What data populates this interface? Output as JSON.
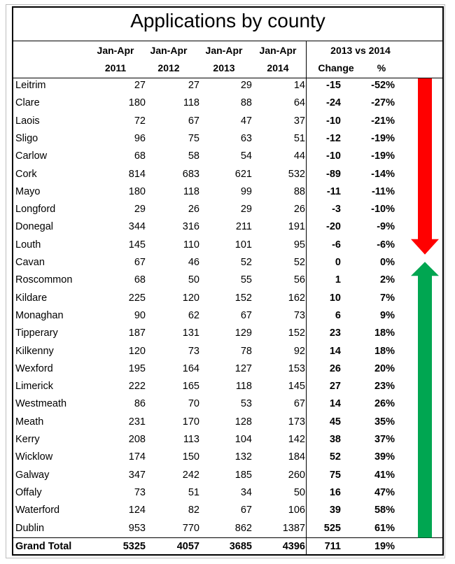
{
  "chart_data": {
    "type": "table",
    "title": "Applications by county",
    "header_top": [
      "Jan-Apr",
      "Jan-Apr",
      "Jan-Apr",
      "Jan-Apr"
    ],
    "header_years": [
      "2011",
      "2012",
      "2013",
      "2014"
    ],
    "comparison_header": "2013 vs 2014",
    "change_header": "Change",
    "pct_header": "%",
    "rows": [
      {
        "county": "Leitrim",
        "y2011": "27",
        "y2012": "27",
        "y2013": "29",
        "y2014": "14",
        "change": "-15",
        "pct": "-52%"
      },
      {
        "county": "Clare",
        "y2011": "180",
        "y2012": "118",
        "y2013": "88",
        "y2014": "64",
        "change": "-24",
        "pct": "-27%"
      },
      {
        "county": "Laois",
        "y2011": "72",
        "y2012": "67",
        "y2013": "47",
        "y2014": "37",
        "change": "-10",
        "pct": "-21%"
      },
      {
        "county": "Sligo",
        "y2011": "96",
        "y2012": "75",
        "y2013": "63",
        "y2014": "51",
        "change": "-12",
        "pct": "-19%"
      },
      {
        "county": "Carlow",
        "y2011": "68",
        "y2012": "58",
        "y2013": "54",
        "y2014": "44",
        "change": "-10",
        "pct": "-19%"
      },
      {
        "county": "Cork",
        "y2011": "814",
        "y2012": "683",
        "y2013": "621",
        "y2014": "532",
        "change": "-89",
        "pct": "-14%"
      },
      {
        "county": "Mayo",
        "y2011": "180",
        "y2012": "118",
        "y2013": "99",
        "y2014": "88",
        "change": "-11",
        "pct": "-11%"
      },
      {
        "county": "Longford",
        "y2011": "29",
        "y2012": "26",
        "y2013": "29",
        "y2014": "26",
        "change": "-3",
        "pct": "-10%"
      },
      {
        "county": "Donegal",
        "y2011": "344",
        "y2012": "316",
        "y2013": "211",
        "y2014": "191",
        "change": "-20",
        "pct": "-9%"
      },
      {
        "county": "Louth",
        "y2011": "145",
        "y2012": "110",
        "y2013": "101",
        "y2014": "95",
        "change": "-6",
        "pct": "-6%"
      },
      {
        "county": "Cavan",
        "y2011": "67",
        "y2012": "46",
        "y2013": "52",
        "y2014": "52",
        "change": "0",
        "pct": "0%"
      },
      {
        "county": "Roscommon",
        "y2011": "68",
        "y2012": "50",
        "y2013": "55",
        "y2014": "56",
        "change": "1",
        "pct": "2%"
      },
      {
        "county": "Kildare",
        "y2011": "225",
        "y2012": "120",
        "y2013": "152",
        "y2014": "162",
        "change": "10",
        "pct": "7%"
      },
      {
        "county": "Monaghan",
        "y2011": "90",
        "y2012": "62",
        "y2013": "67",
        "y2014": "73",
        "change": "6",
        "pct": "9%"
      },
      {
        "county": "Tipperary",
        "y2011": "187",
        "y2012": "131",
        "y2013": "129",
        "y2014": "152",
        "change": "23",
        "pct": "18%"
      },
      {
        "county": "Kilkenny",
        "y2011": "120",
        "y2012": "73",
        "y2013": "78",
        "y2014": "92",
        "change": "14",
        "pct": "18%"
      },
      {
        "county": "Wexford",
        "y2011": "195",
        "y2012": "164",
        "y2013": "127",
        "y2014": "153",
        "change": "26",
        "pct": "20%"
      },
      {
        "county": "Limerick",
        "y2011": "222",
        "y2012": "165",
        "y2013": "118",
        "y2014": "145",
        "change": "27",
        "pct": "23%"
      },
      {
        "county": "Westmeath",
        "y2011": "86",
        "y2012": "70",
        "y2013": "53",
        "y2014": "67",
        "change": "14",
        "pct": "26%"
      },
      {
        "county": "Meath",
        "y2011": "231",
        "y2012": "170",
        "y2013": "128",
        "y2014": "173",
        "change": "45",
        "pct": "35%"
      },
      {
        "county": "Kerry",
        "y2011": "208",
        "y2012": "113",
        "y2013": "104",
        "y2014": "142",
        "change": "38",
        "pct": "37%"
      },
      {
        "county": "Wicklow",
        "y2011": "174",
        "y2012": "150",
        "y2013": "132",
        "y2014": "184",
        "change": "52",
        "pct": "39%"
      },
      {
        "county": "Galway",
        "y2011": "347",
        "y2012": "242",
        "y2013": "185",
        "y2014": "260",
        "change": "75",
        "pct": "41%"
      },
      {
        "county": "Offaly",
        "y2011": "73",
        "y2012": "51",
        "y2013": "34",
        "y2014": "50",
        "change": "16",
        "pct": "47%"
      },
      {
        "county": "Waterford",
        "y2011": "124",
        "y2012": "82",
        "y2013": "67",
        "y2014": "106",
        "change": "39",
        "pct": "58%"
      },
      {
        "county": "Dublin",
        "y2011": "953",
        "y2012": "770",
        "y2013": "862",
        "y2014": "1387",
        "change": "525",
        "pct": "61%"
      }
    ],
    "total": {
      "county": "Grand Total",
      "y2011": "5325",
      "y2012": "4057",
      "y2013": "3685",
      "y2014": "4396",
      "change": "711",
      "pct": "19%"
    },
    "arrows": [
      {
        "direction": "down",
        "color": "#ff0000",
        "from_row": "Leitrim",
        "to_row": "Louth"
      },
      {
        "direction": "up",
        "color": "#00a651",
        "from_row": "Dublin",
        "to_row": "Roscommon"
      }
    ]
  }
}
